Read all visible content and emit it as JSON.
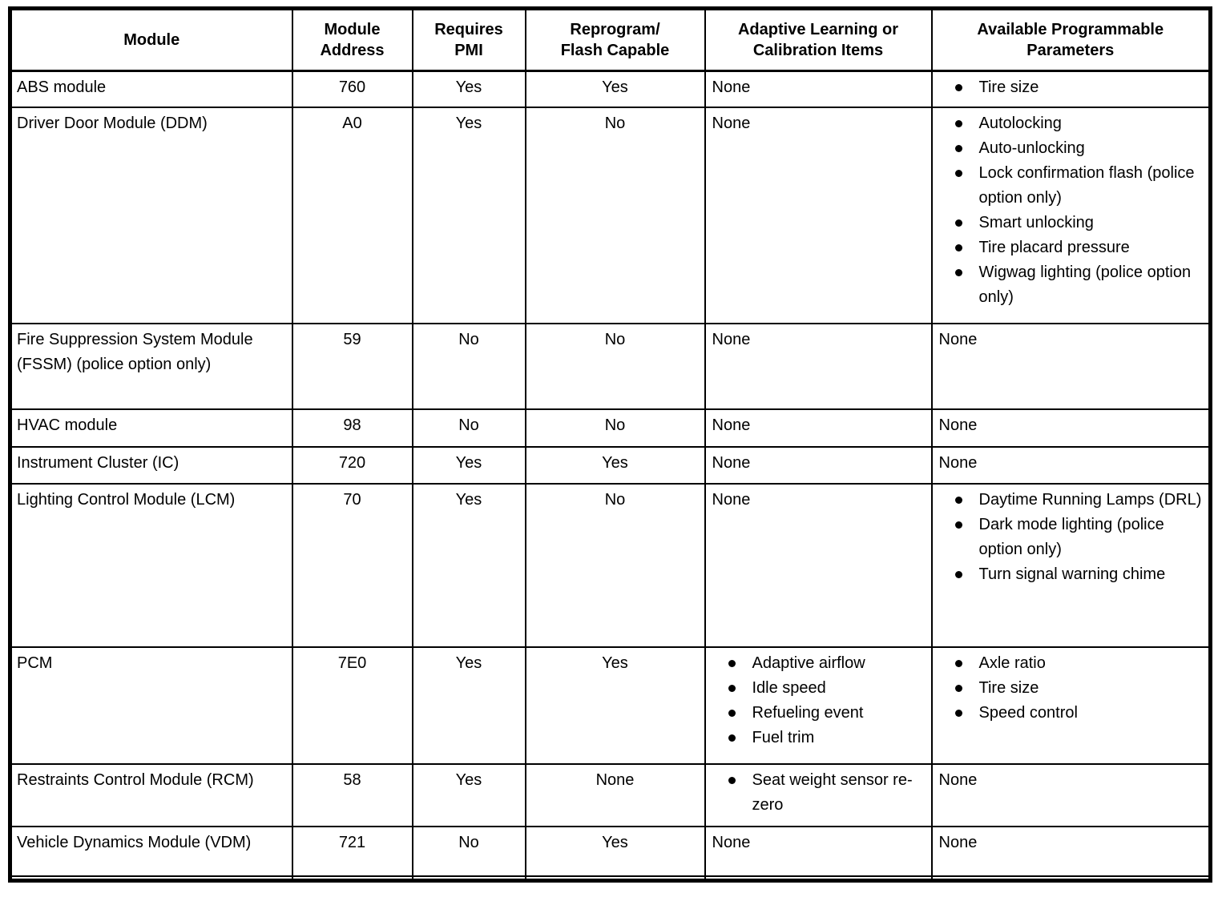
{
  "table": {
    "columns": [
      "Module",
      "Module\nAddress",
      "Requires\nPMI",
      "Reprogram/\nFlash Capable",
      "Adaptive Learning or\nCalibration Items",
      "Available Programmable\nParameters"
    ],
    "rows": [
      {
        "module": "ABS module",
        "address": "760",
        "pmi": "Yes",
        "flash": "Yes",
        "adaptive": "None",
        "parameters": [
          "Tire size"
        ]
      },
      {
        "module": "Driver Door Module (DDM)",
        "address": "A0",
        "pmi": "Yes",
        "flash": "No",
        "adaptive": "None",
        "parameters": [
          "Autolocking",
          "Auto-unlocking",
          "Lock confirmation flash (police option only)",
          "Smart unlocking",
          "Tire placard pressure",
          "Wigwag lighting (police option only)"
        ]
      },
      {
        "module": "Fire Suppression System Module (FSSM) (police option only)",
        "address": "59",
        "pmi": "No",
        "flash": "No",
        "adaptive": "None",
        "parameters": "None"
      },
      {
        "module": "HVAC module",
        "address": "98",
        "pmi": "No",
        "flash": "No",
        "adaptive": "None",
        "parameters": "None"
      },
      {
        "module": "Instrument Cluster (IC)",
        "address": "720",
        "pmi": "Yes",
        "flash": "Yes",
        "adaptive": "None",
        "parameters": "None"
      },
      {
        "module": "Lighting Control Module (LCM)",
        "address": "70",
        "pmi": "Yes",
        "flash": "No",
        "adaptive": "None",
        "parameters": [
          "Daytime Running Lamps (DRL)",
          "Dark mode lighting (police option only)",
          "Turn signal warning chime"
        ]
      },
      {
        "module": "PCM",
        "address": "7E0",
        "pmi": "Yes",
        "flash": "Yes",
        "adaptive": [
          "Adaptive airflow",
          "Idle speed",
          "Refueling event",
          "Fuel trim"
        ],
        "parameters": [
          "Axle ratio",
          "Tire size",
          "Speed control"
        ]
      },
      {
        "module": "Restraints Control Module (RCM)",
        "address": "58",
        "pmi": "Yes",
        "flash": "None",
        "adaptive": [
          "Seat weight sensor re-zero"
        ],
        "parameters": "None"
      },
      {
        "module": "Vehicle Dynamics Module (VDM)",
        "address": "721",
        "pmi": "No",
        "flash": "Yes",
        "adaptive": "None",
        "parameters": "None"
      }
    ]
  },
  "colors": {
    "border": "#000000",
    "text": "#000000",
    "background": "#ffffff"
  }
}
